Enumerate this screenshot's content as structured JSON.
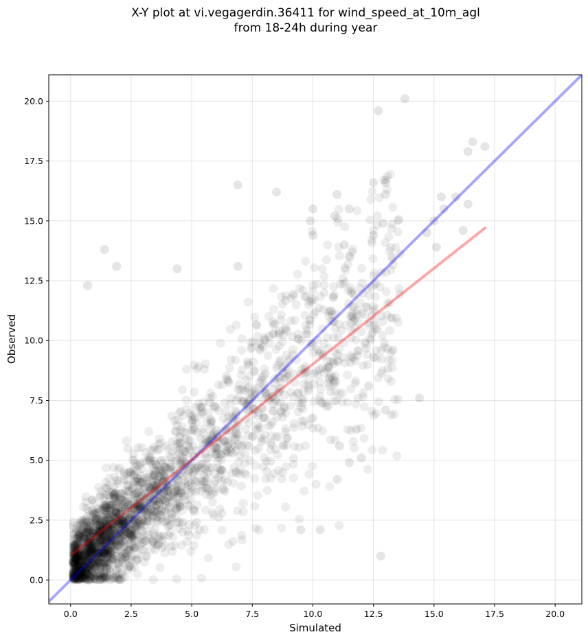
{
  "chart_data": {
    "type": "scatter",
    "title_line1": "X-Y plot at vi.vegagerdin.36411 for wind_speed_at_10m_agl",
    "title_line2": "from 18-24h during year",
    "xlabel": "Simulated",
    "ylabel": "Observed",
    "xlim": [
      -0.9,
      21.1
    ],
    "ylim": [
      -1.0,
      21.1
    ],
    "xticks": [
      0.0,
      2.5,
      5.0,
      7.5,
      10.0,
      12.5,
      15.0,
      17.5,
      20.0
    ],
    "yticks": [
      0.0,
      2.5,
      5.0,
      7.5,
      10.0,
      12.5,
      15.0,
      17.5,
      20.0
    ],
    "xtick_labels": [
      "0.0",
      "2.5",
      "5.0",
      "7.5",
      "10.0",
      "12.5",
      "15.0",
      "17.5",
      "20.0"
    ],
    "ytick_labels": [
      "0.0",
      "2.5",
      "5.0",
      "7.5",
      "10.0",
      "12.5",
      "15.0",
      "17.5",
      "20.0"
    ],
    "grid": true,
    "point_color": "#000000",
    "identity_line": {
      "color": "#0000ff",
      "x": [
        -0.9,
        21.1
      ],
      "y": [
        -0.9,
        21.1
      ]
    },
    "regression_line": {
      "color": "#ff0000",
      "x": [
        0.1,
        17.1
      ],
      "y": [
        1.1,
        14.7
      ]
    },
    "outlier_points": [
      [
        13.8,
        20.1
      ],
      [
        12.7,
        19.6
      ],
      [
        16.6,
        18.3
      ],
      [
        17.1,
        18.1
      ],
      [
        16.4,
        17.9
      ],
      [
        6.9,
        16.5
      ],
      [
        12.5,
        16.6
      ],
      [
        13.0,
        16.6
      ],
      [
        8.5,
        16.2
      ],
      [
        11.0,
        16.1
      ],
      [
        13.0,
        16.1
      ],
      [
        15.3,
        16.0
      ],
      [
        15.9,
        16.0
      ],
      [
        15.4,
        15.5
      ],
      [
        16.4,
        15.7
      ],
      [
        10.0,
        15.5
      ],
      [
        11.5,
        15.5
      ],
      [
        10.9,
        15.2
      ],
      [
        9.9,
        15.0
      ],
      [
        15.0,
        15.0
      ],
      [
        12.9,
        14.9
      ],
      [
        16.2,
        14.6
      ],
      [
        14.7,
        14.5
      ],
      [
        10.0,
        14.4
      ],
      [
        12.5,
        14.4
      ],
      [
        11.3,
        14.0
      ],
      [
        15.1,
        13.9
      ],
      [
        1.4,
        13.8
      ],
      [
        1.9,
        13.1
      ],
      [
        6.9,
        13.1
      ],
      [
        4.4,
        13.0
      ],
      [
        0.7,
        12.3
      ],
      [
        14.4,
        7.6
      ],
      [
        13.0,
        7.1
      ],
      [
        12.8,
        1.0
      ],
      [
        11.0,
        4.2
      ],
      [
        10.3,
        2.1
      ],
      [
        9.5,
        2.1
      ],
      [
        11.5,
        4.9
      ],
      [
        13.3,
        9.6
      ],
      [
        12.5,
        9.3
      ],
      [
        12.3,
        8.1
      ],
      [
        11.8,
        6.3
      ],
      [
        11.1,
        5.6
      ],
      [
        12.0,
        5.1
      ]
    ]
  }
}
